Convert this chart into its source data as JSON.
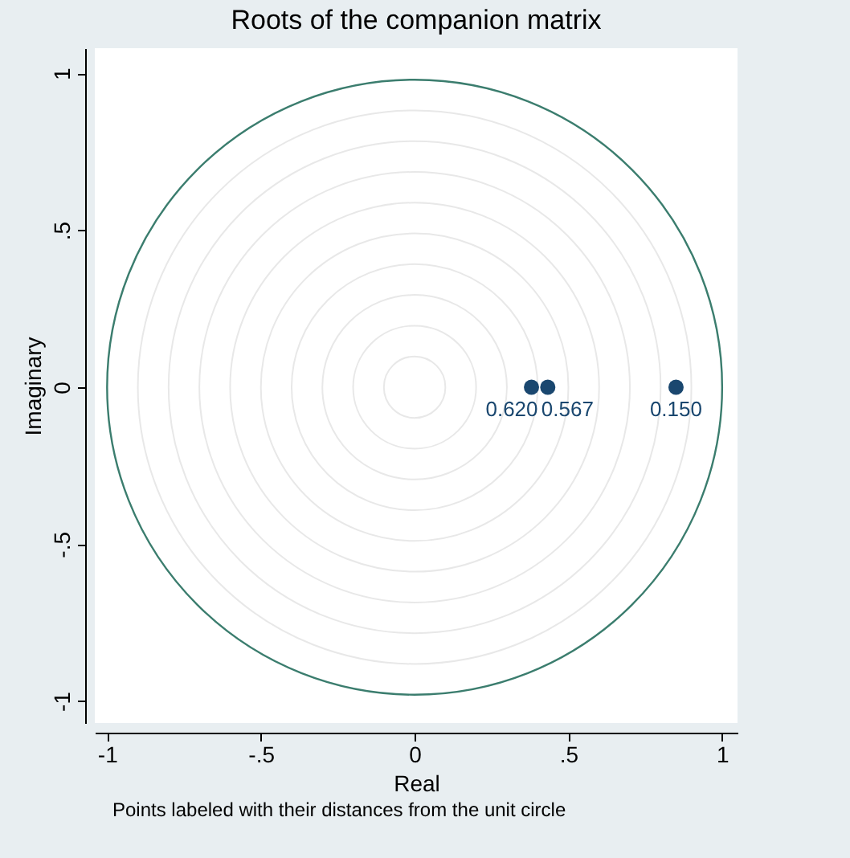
{
  "chart_data": {
    "type": "scatter",
    "title": "Roots of the companion matrix",
    "xlabel": "Real",
    "ylabel": "Imaginary",
    "annotations": [
      "Points labeled with their distances from the unit circle",
      {
        "text": "0.620",
        "x": 0.38,
        "y": 0
      },
      {
        "text": "0.567",
        "x": 0.433,
        "y": 0
      },
      {
        "text": "0.150",
        "x": 0.85,
        "y": 0
      }
    ],
    "xlim": [
      -1.04,
      1.05
    ],
    "ylim": [
      -1.07,
      1.08
    ],
    "xticks": [
      {
        "value": -1,
        "label": "-1"
      },
      {
        "value": -0.5,
        "label": "-.5"
      },
      {
        "value": 0,
        "label": "0"
      },
      {
        "value": 0.5,
        "label": ".5"
      },
      {
        "value": 1,
        "label": "1"
      }
    ],
    "yticks": [
      {
        "value": -1,
        "label": "-1"
      },
      {
        "value": -0.5,
        "label": "-.5"
      },
      {
        "value": 0,
        "label": "0"
      },
      {
        "value": 0.5,
        "label": ".5"
      },
      {
        "value": 1,
        "label": "1"
      }
    ],
    "series": [
      {
        "color": "#1a476f",
        "marker": "circle",
        "x": [
          0.38,
          0.433,
          0.85
        ],
        "values": [
          0,
          0,
          0
        ]
      }
    ]
  }
}
